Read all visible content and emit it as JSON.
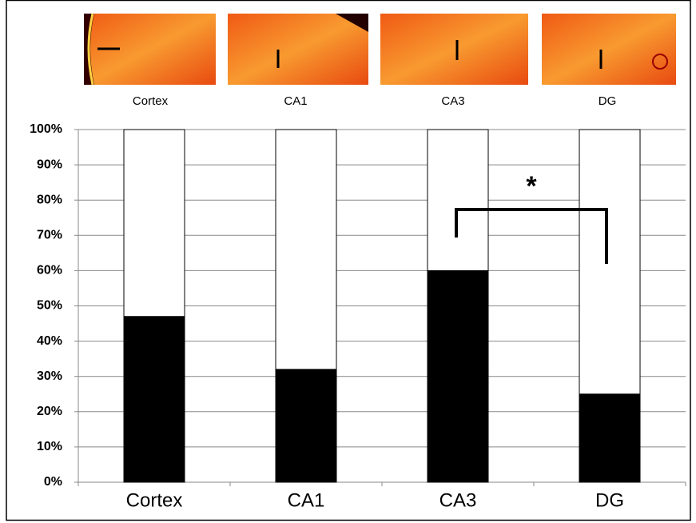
{
  "chart_data": {
    "type": "stacked_bar",
    "panel_labels": [
      "Cortex",
      "CA1",
      "CA3",
      "DG"
    ],
    "categories": [
      "Cortex",
      "CA1",
      "CA3",
      "DG"
    ],
    "series": [
      {
        "color": "#000000",
        "values": [
          47,
          32,
          60,
          25
        ]
      },
      {
        "color": "#ffffff",
        "values": [
          53,
          68,
          40,
          75
        ]
      }
    ],
    "ylim": [
      0,
      100
    ],
    "yticks": [
      {
        "value": 0,
        "label": "0%"
      },
      {
        "value": 10,
        "label": "10%"
      },
      {
        "value": 20,
        "label": "20%"
      },
      {
        "value": 30,
        "label": "30%"
      },
      {
        "value": 40,
        "label": "40%"
      },
      {
        "value": 50,
        "label": "50%"
      },
      {
        "value": 60,
        "label": "60%"
      },
      {
        "value": 70,
        "label": "70%"
      },
      {
        "value": 80,
        "label": "80%"
      },
      {
        "value": 90,
        "label": "90%"
      },
      {
        "value": 100,
        "label": "100%"
      }
    ],
    "grid": true,
    "annotation": "*"
  }
}
